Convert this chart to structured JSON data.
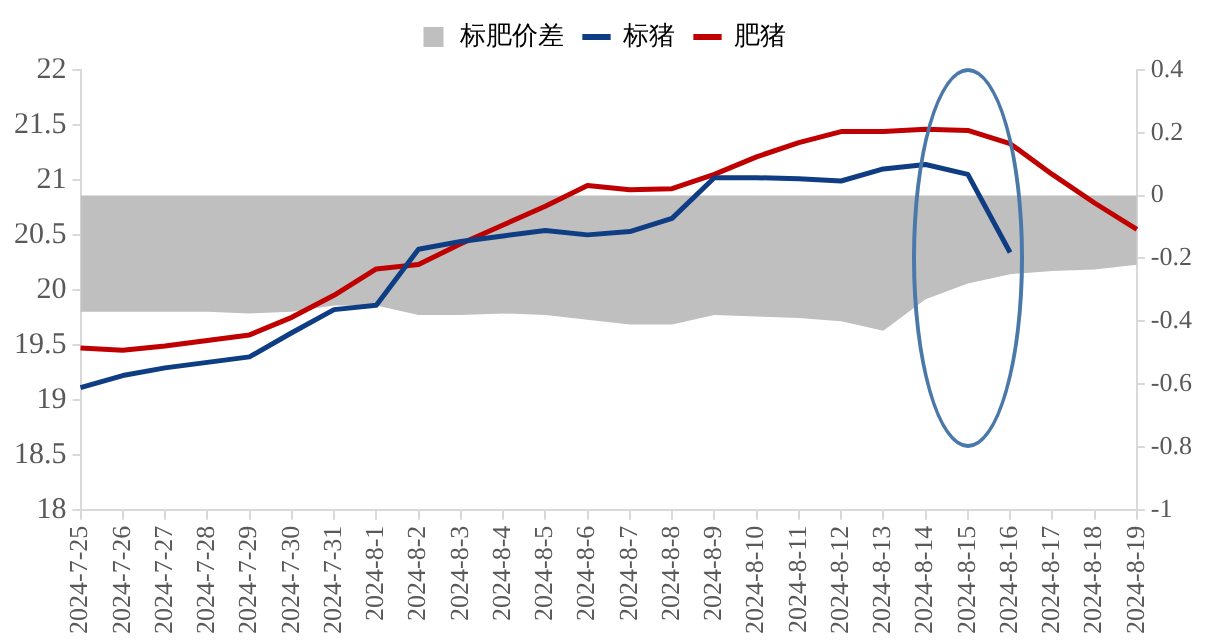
{
  "chart_data": {
    "type": "line",
    "categories": [
      "2024-7-25",
      "2024-7-26",
      "2024-7-27",
      "2024-7-28",
      "2024-7-29",
      "2024-7-30",
      "2024-7-31",
      "2024-8-1",
      "2024-8-2",
      "2024-8-3",
      "2024-8-4",
      "2024-8-5",
      "2024-8-6",
      "2024-8-7",
      "2024-8-8",
      "2024-8-9",
      "2024-8-10",
      "2024-8-11",
      "2024-8-12",
      "2024-8-13",
      "2024-8-14",
      "2024-8-15",
      "2024-8-16",
      "2024-8-17",
      "2024-8-18",
      "2024-8-19"
    ],
    "series": [
      {
        "name": "标肥价差",
        "type": "area",
        "axis": "y2",
        "color": "#bfbfbf",
        "values": [
          -0.37,
          -0.37,
          -0.37,
          -0.37,
          -0.375,
          -0.37,
          -0.35,
          -0.35,
          -0.38,
          -0.38,
          -0.375,
          -0.38,
          -0.395,
          -0.41,
          -0.41,
          -0.38,
          -0.385,
          -0.39,
          -0.4,
          -0.43,
          -0.33,
          -0.28,
          -0.25,
          -0.24,
          -0.235,
          -0.22
        ]
      },
      {
        "name": "标猪",
        "color": "#0f3d84",
        "values": [
          19.11,
          19.22,
          19.29,
          19.34,
          19.39,
          19.61,
          19.82,
          19.86,
          20.37,
          20.44,
          20.49,
          20.54,
          20.5,
          20.53,
          20.65,
          21.02,
          21.02,
          21.01,
          20.99,
          21.1,
          21.14,
          21.05,
          20.34,
          null,
          null,
          null
        ]
      },
      {
        "name": "肥猪",
        "color": "#c00000",
        "values": [
          19.47,
          19.45,
          19.49,
          19.54,
          19.59,
          19.75,
          19.95,
          20.19,
          20.23,
          20.42,
          20.59,
          20.76,
          20.95,
          20.91,
          20.92,
          21.05,
          21.21,
          21.34,
          21.44,
          21.44,
          21.46,
          21.45,
          21.33,
          21.05,
          20.79,
          20.55
        ]
      }
    ],
    "ylim": [
      18,
      22
    ],
    "yticks": [
      18,
      18.5,
      19,
      19.5,
      20,
      20.5,
      21,
      21.5,
      22
    ],
    "y2lim": [
      -1,
      0.4
    ],
    "y2ticks": [
      -1,
      -0.8,
      -0.6,
      -0.4,
      -0.2,
      0,
      0.2,
      0.4
    ],
    "legend": "top",
    "grid": false,
    "marker": "none"
  }
}
